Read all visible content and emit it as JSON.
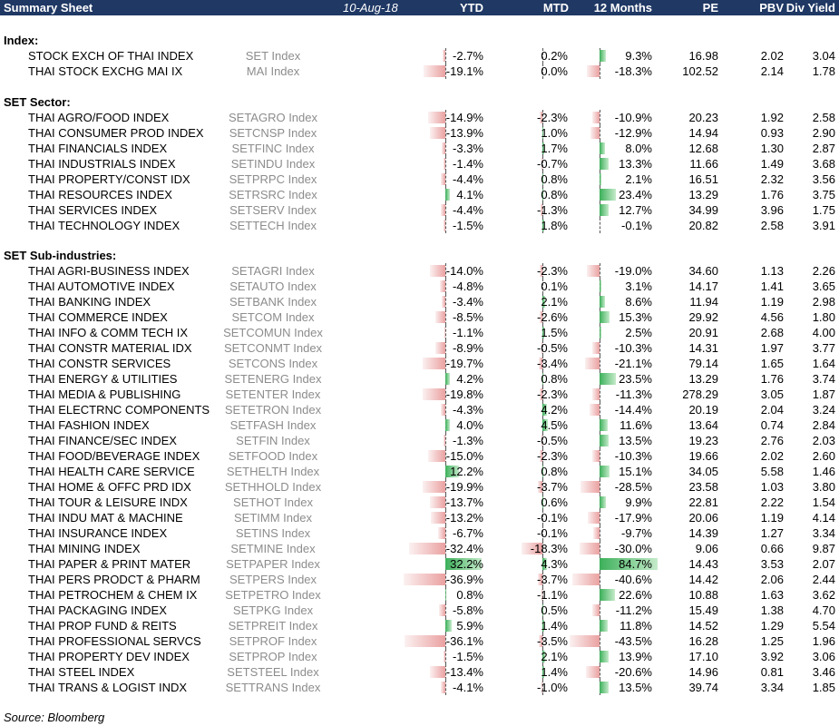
{
  "header": {
    "title": "Summary Sheet",
    "date": "10-Aug-18",
    "cols": [
      "YTD",
      "MTD",
      "12 Months",
      "PE",
      "PBV",
      "Div Yield"
    ]
  },
  "sections": [
    {
      "title": "Index:",
      "rows": [
        {
          "name": "STOCK EXCH OF THAI INDEX",
          "ticker": "SET Index",
          "ytd": -2.7,
          "mtd": 0.2,
          "m12": 9.3,
          "pe": "16.98",
          "pbv": "2.02",
          "dy": "3.04"
        },
        {
          "name": "THAI STOCK EXCHG MAI IX",
          "ticker": "MAI Index",
          "ytd": -19.1,
          "mtd": 0.0,
          "m12": -18.3,
          "pe": "102.52",
          "pbv": "2.14",
          "dy": "1.78"
        }
      ]
    },
    {
      "title": "SET Sector:",
      "rows": [
        {
          "name": "THAI AGRO/FOOD INDEX",
          "ticker": "SETAGRO Index",
          "ytd": -14.9,
          "mtd": -2.3,
          "m12": -10.9,
          "pe": "20.23",
          "pbv": "1.92",
          "dy": "2.58"
        },
        {
          "name": "THAI CONSUMER PROD INDEX",
          "ticker": "SETCNSP Index",
          "ytd": -13.9,
          "mtd": 1.0,
          "m12": -12.9,
          "pe": "14.94",
          "pbv": "0.93",
          "dy": "2.90"
        },
        {
          "name": "THAI FINANCIALS INDEX",
          "ticker": "SETFINC Index",
          "ytd": -3.3,
          "mtd": 1.7,
          "m12": 8.0,
          "pe": "12.68",
          "pbv": "1.30",
          "dy": "2.87"
        },
        {
          "name": "THAI INDUSTRIALS INDEX",
          "ticker": "SETINDU Index",
          "ytd": -1.4,
          "mtd": -0.7,
          "m12": 13.3,
          "pe": "11.66",
          "pbv": "1.49",
          "dy": "3.68"
        },
        {
          "name": "THAI PROPERTY/CONST IDX",
          "ticker": "SETPRPC Index",
          "ytd": -4.4,
          "mtd": 0.8,
          "m12": 2.1,
          "pe": "16.51",
          "pbv": "2.32",
          "dy": "3.56"
        },
        {
          "name": "THAI RESOURCES INDEX",
          "ticker": "SETRSRC Index",
          "ytd": 4.1,
          "mtd": 0.8,
          "m12": 23.4,
          "pe": "13.29",
          "pbv": "1.76",
          "dy": "3.75"
        },
        {
          "name": "THAI SERVICES INDEX",
          "ticker": "SETSERV Index",
          "ytd": -4.4,
          "mtd": -1.3,
          "m12": 12.7,
          "pe": "34.99",
          "pbv": "3.96",
          "dy": "1.75"
        },
        {
          "name": "THAI TECHNOLOGY INDEX",
          "ticker": "SETTECH Index",
          "ytd": -1.5,
          "mtd": 1.8,
          "m12": -0.1,
          "pe": "20.82",
          "pbv": "2.58",
          "dy": "3.91"
        }
      ]
    },
    {
      "title": "SET Sub-industries:",
      "rows": [
        {
          "name": "THAI AGRI-BUSINESS INDEX",
          "ticker": "SETAGRI Index",
          "ytd": -14.0,
          "mtd": -2.3,
          "m12": -19.0,
          "pe": "34.60",
          "pbv": "1.13",
          "dy": "2.26"
        },
        {
          "name": "THAI AUTOMOTIVE INDEX",
          "ticker": "SETAUTO Index",
          "ytd": -4.8,
          "mtd": 0.1,
          "m12": 3.1,
          "pe": "14.17",
          "pbv": "1.41",
          "dy": "3.65"
        },
        {
          "name": "THAI BANKING INDEX",
          "ticker": "SETBANK Index",
          "ytd": -3.4,
          "mtd": 2.1,
          "m12": 8.6,
          "pe": "11.94",
          "pbv": "1.19",
          "dy": "2.98"
        },
        {
          "name": "THAI COMMERCE INDEX",
          "ticker": "SETCOM Index",
          "ytd": -8.5,
          "mtd": -2.6,
          "m12": 15.3,
          "pe": "29.92",
          "pbv": "4.56",
          "dy": "1.80"
        },
        {
          "name": "THAI INFO & COMM TECH IX",
          "ticker": "SETCOMUN Index",
          "ytd": -1.1,
          "mtd": 1.5,
          "m12": 2.5,
          "pe": "20.91",
          "pbv": "2.68",
          "dy": "4.00"
        },
        {
          "name": "THAI CONSTR MATERIAL IDX",
          "ticker": "SETCONMT Index",
          "ytd": -8.9,
          "mtd": -0.5,
          "m12": -10.3,
          "pe": "14.31",
          "pbv": "1.97",
          "dy": "3.77"
        },
        {
          "name": "THAI CONSTR SERVICES",
          "ticker": "SETCONS Index",
          "ytd": -19.7,
          "mtd": -3.4,
          "m12": -21.1,
          "pe": "79.14",
          "pbv": "1.65",
          "dy": "1.64"
        },
        {
          "name": "THAI ENERGY & UTILITIES",
          "ticker": "SETENERG Index",
          "ytd": 4.2,
          "mtd": 0.8,
          "m12": 23.5,
          "pe": "13.29",
          "pbv": "1.76",
          "dy": "3.74"
        },
        {
          "name": "THAI MEDIA & PUBLISHING",
          "ticker": "SETENTER Index",
          "ytd": -19.8,
          "mtd": -2.3,
          "m12": -11.3,
          "pe": "278.29",
          "pbv": "3.05",
          "dy": "1.87"
        },
        {
          "name": "THAI ELECTRNC COMPONENTS",
          "ticker": "SETETRON Index",
          "ytd": -4.3,
          "mtd": 4.2,
          "m12": -14.4,
          "pe": "20.19",
          "pbv": "2.04",
          "dy": "3.24"
        },
        {
          "name": "THAI FASHION INDEX",
          "ticker": "SETFASH Index",
          "ytd": 4.0,
          "mtd": 4.5,
          "m12": 11.6,
          "pe": "13.64",
          "pbv": "0.74",
          "dy": "2.84"
        },
        {
          "name": "THAI FINANCE/SEC INDEX",
          "ticker": "SETFIN Index",
          "ytd": -1.3,
          "mtd": -0.5,
          "m12": 13.5,
          "pe": "19.23",
          "pbv": "2.76",
          "dy": "2.03"
        },
        {
          "name": "THAI FOOD/BEVERAGE INDEX",
          "ticker": "SETFOOD Index",
          "ytd": -15.0,
          "mtd": -2.3,
          "m12": -10.3,
          "pe": "19.66",
          "pbv": "2.02",
          "dy": "2.60"
        },
        {
          "name": "THAI HEALTH CARE SERVICE",
          "ticker": "SETHELTH Index",
          "ytd": 12.2,
          "mtd": 0.8,
          "m12": 15.1,
          "pe": "34.05",
          "pbv": "5.58",
          "dy": "1.46"
        },
        {
          "name": "THAI HOME & OFFC PRD IDX",
          "ticker": "SETHHOLD Index",
          "ytd": -19.9,
          "mtd": -3.7,
          "m12": -28.5,
          "pe": "23.58",
          "pbv": "1.03",
          "dy": "3.80"
        },
        {
          "name": "THAI TOUR & LEISURE INDX",
          "ticker": "SETHOT Index",
          "ytd": -13.7,
          "mtd": 0.6,
          "m12": 9.9,
          "pe": "22.81",
          "pbv": "2.22",
          "dy": "1.54"
        },
        {
          "name": "THAI INDU MAT & MACHINE",
          "ticker": "SETIMM Index",
          "ytd": -13.2,
          "mtd": -0.1,
          "m12": -17.9,
          "pe": "20.06",
          "pbv": "1.19",
          "dy": "4.14"
        },
        {
          "name": "THAI INSURANCE INDEX",
          "ticker": "SETINS Index",
          "ytd": -6.7,
          "mtd": -0.1,
          "m12": -9.7,
          "pe": "14.39",
          "pbv": "1.27",
          "dy": "3.34"
        },
        {
          "name": "THAI MINING INDEX",
          "ticker": "SETMINE Index",
          "ytd": -32.4,
          "mtd": -18.3,
          "m12": -30.0,
          "pe": "9.06",
          "pbv": "0.66",
          "dy": "9.87"
        },
        {
          "name": "THAI PAPER & PRINT MATER",
          "ticker": "SETPAPER Index",
          "ytd": 32.2,
          "mtd": 4.3,
          "m12": 84.7,
          "pe": "14.43",
          "pbv": "3.53",
          "dy": "2.07"
        },
        {
          "name": "THAI PERS PRODCT & PHARM",
          "ticker": "SETPERS Index",
          "ytd": -36.9,
          "mtd": -3.7,
          "m12": -40.6,
          "pe": "14.42",
          "pbv": "2.06",
          "dy": "2.44"
        },
        {
          "name": "THAI PETROCHEM & CHEM IX",
          "ticker": "SETPETRO Index",
          "ytd": 0.8,
          "mtd": -1.1,
          "m12": 22.6,
          "pe": "10.88",
          "pbv": "1.63",
          "dy": "3.62"
        },
        {
          "name": "THAI PACKAGING INDEX",
          "ticker": "SETPKG Index",
          "ytd": -5.8,
          "mtd": 0.5,
          "m12": -11.2,
          "pe": "15.49",
          "pbv": "1.38",
          "dy": "4.70"
        },
        {
          "name": "THAI PROP FUND & REITS",
          "ticker": "SETPREIT Index",
          "ytd": 5.9,
          "mtd": 1.4,
          "m12": 11.8,
          "pe": "14.52",
          "pbv": "1.29",
          "dy": "5.54"
        },
        {
          "name": "THAI PROFESSIONAL SERVCS",
          "ticker": "SETPROF Index",
          "ytd": -36.1,
          "mtd": -3.5,
          "m12": -43.5,
          "pe": "16.28",
          "pbv": "1.25",
          "dy": "1.96"
        },
        {
          "name": "THAI PROPERTY DEV INDEX",
          "ticker": "SETPROP Index",
          "ytd": -1.5,
          "mtd": 2.1,
          "m12": 13.9,
          "pe": "17.10",
          "pbv": "3.92",
          "dy": "3.06"
        },
        {
          "name": "THAI STEEL INDEX",
          "ticker": "SETSTEEL Index",
          "ytd": -13.4,
          "mtd": 1.4,
          "m12": -20.6,
          "pe": "14.96",
          "pbv": "0.81",
          "dy": "3.46"
        },
        {
          "name": "THAI TRANS & LOGIST INDX",
          "ticker": "SETTRANS Index",
          "ytd": -4.1,
          "mtd": -1.0,
          "m12": 13.5,
          "pe": "39.74",
          "pbv": "3.34",
          "dy": "1.85"
        }
      ]
    }
  ],
  "source": "Source: Bloomberg",
  "colors": {
    "header_bg": "#1f3864",
    "positive_bar": "#3cb05a",
    "negative_bar": "#e89696",
    "ticker_text": "#8c8c8c"
  }
}
